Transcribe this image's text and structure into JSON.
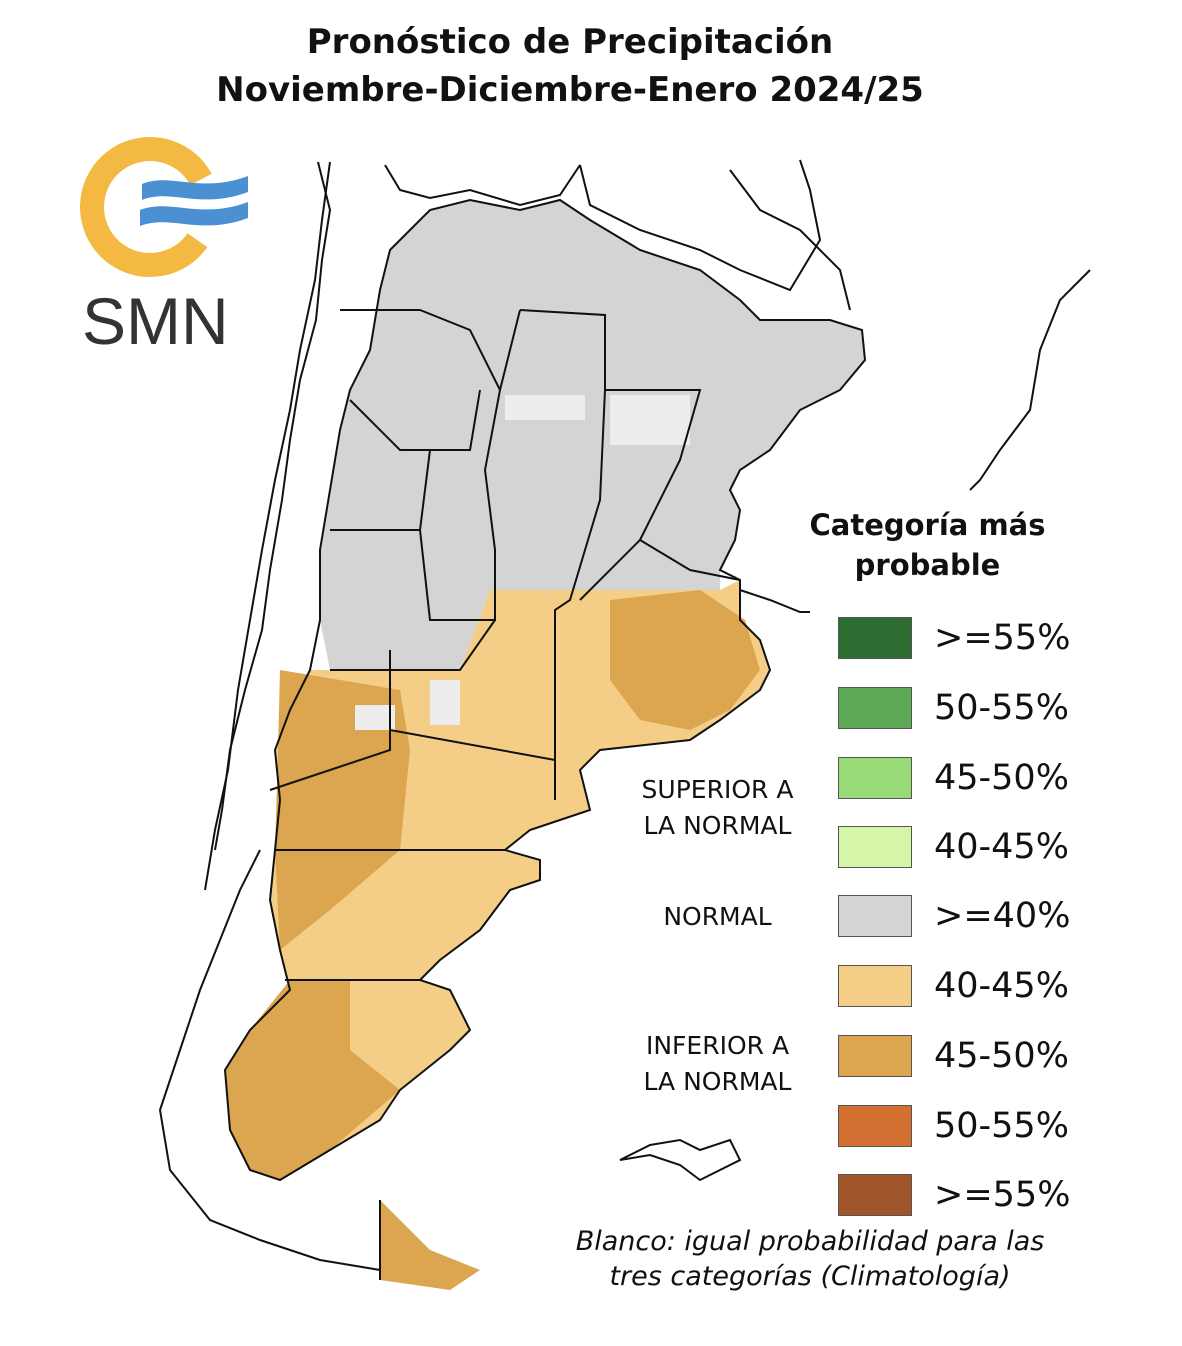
{
  "title": {
    "line1": "Pronóstico de Precipitación",
    "line2": "Noviembre-Diciembre-Enero 2024/25"
  },
  "logo": {
    "text": "SMN",
    "colors": {
      "ring": "#F4B942",
      "waves": "#4A90D2",
      "text": "#333333"
    }
  },
  "legend": {
    "title_line1": "Categoría más",
    "title_line2": "probable",
    "groups": {
      "superior": {
        "line1": "SUPERIOR A",
        "line2": "LA NORMAL"
      },
      "normal": {
        "line1": "NORMAL"
      },
      "inferior": {
        "line1": "INFERIOR A",
        "line2": "LA NORMAL"
      }
    },
    "items": [
      {
        "label": ">=55%",
        "color": "#2F6E32",
        "category": "superior"
      },
      {
        "label": "50-55%",
        "color": "#5DA855",
        "category": "superior"
      },
      {
        "label": "45-50%",
        "color": "#98D978",
        "category": "superior"
      },
      {
        "label": "40-45%",
        "color": "#D5F5A9",
        "category": "superior"
      },
      {
        "label": ">=40%",
        "color": "#D4D4D4",
        "category": "normal"
      },
      {
        "label": "40-45%",
        "color": "#F4CE86",
        "category": "inferior"
      },
      {
        "label": "45-50%",
        "color": "#DCA650",
        "category": "inferior"
      },
      {
        "label": "50-55%",
        "color": "#D26F31",
        "category": "inferior"
      },
      {
        "label": ">=55%",
        "color": "#A0552A",
        "category": "inferior"
      }
    ],
    "note_line1": "Blanco: igual probabilidad para las",
    "note_line2": "tres categorías (Climatología)"
  },
  "map_colors": {
    "normal": "#D4D4D4",
    "inferior_40_45": "#F4CE86",
    "inferior_45_50": "#DCA650",
    "white": "#EDEDED",
    "border": "#111111"
  }
}
